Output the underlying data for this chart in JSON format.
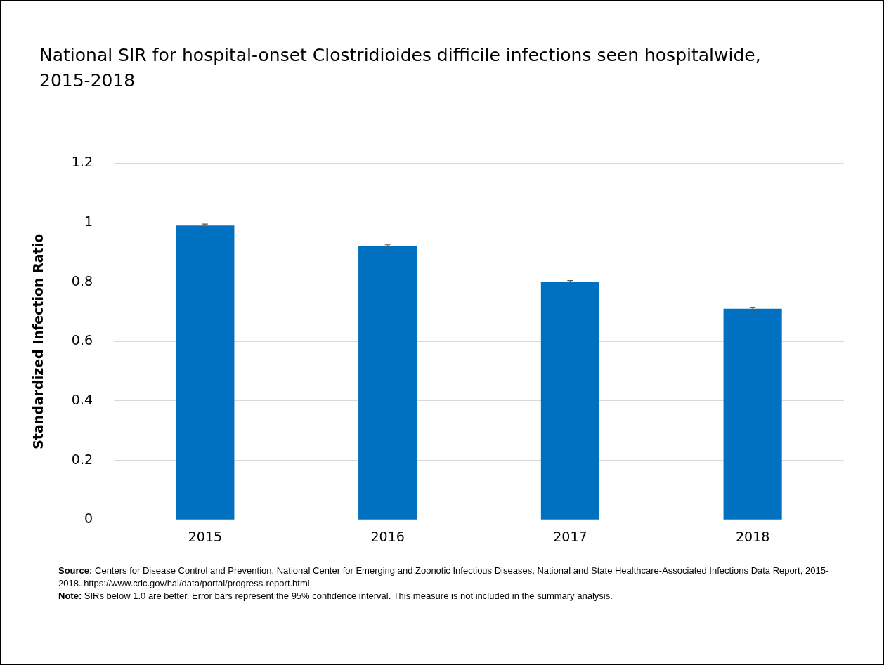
{
  "chart_data": {
    "type": "bar",
    "title": "National SIR for hospital-onset Clostridioides difficile infections seen hospitalwide, 2015-2018",
    "ylabel": "Standardized Infection Ratio",
    "categories": [
      "2015",
      "2016",
      "2017",
      "2018"
    ],
    "values": [
      0.99,
      0.92,
      0.8,
      0.71
    ],
    "errors": [
      0.005,
      0.005,
      0.005,
      0.005
    ],
    "color": "#0070c0",
    "ylim": [
      0,
      1.2
    ],
    "yticks": [
      0,
      0.2,
      0.4,
      0.6,
      0.8,
      1,
      1.2
    ],
    "grid": "y",
    "legend": false,
    "annotations": [
      "Source: Centers for Disease Control and Prevention, National Center for Emerging and Zoonotic Infectious Diseases, National and State Healthcare-Associated Infections Data Report, 2015-2018. https://www.cdc.gov/hai/data/portal/progress-report.html.",
      "Note: SIRs below 1.0 are better. Error bars represent the 95% confidence interval. This measure is not included in the summary analysis."
    ]
  }
}
